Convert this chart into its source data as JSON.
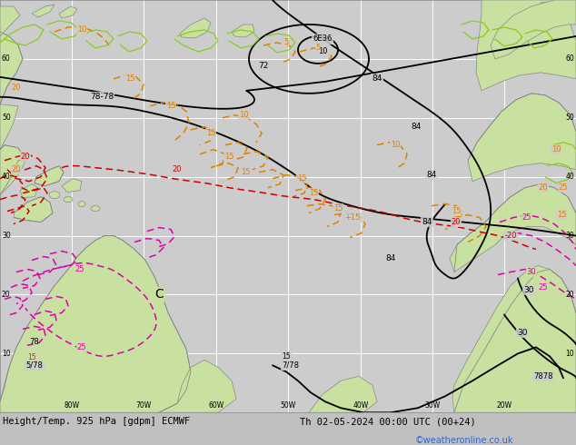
{
  "title_left": "Height/Temp. 925 hPa [gdpm] ECMWF",
  "title_right": "Th 02-05-2024 00:00 UTC (00+24)",
  "credit": "©weatheronline.co.uk",
  "fig_bg": "#c0c0c0",
  "map_bg": "#cccccc",
  "land_color": "#c8e0a0",
  "water_color": "#cccccc",
  "grid_color": "#ffffff",
  "black_color": "#000000",
  "orange_color": "#e08000",
  "red_color": "#cc0000",
  "magenta_color": "#dd00aa",
  "lime_color": "#88cc20",
  "gray_coast": "#999999",
  "title_color": "#000000",
  "credit_color": "#3366cc",
  "title_fontsize": 7.5,
  "credit_fontsize": 7.0,
  "label_fontsize": 6.5,
  "contour_lw": 1.3,
  "temp_lw": 1.1,
  "coast_lw": 0.6,
  "grid_lw": 0.7
}
